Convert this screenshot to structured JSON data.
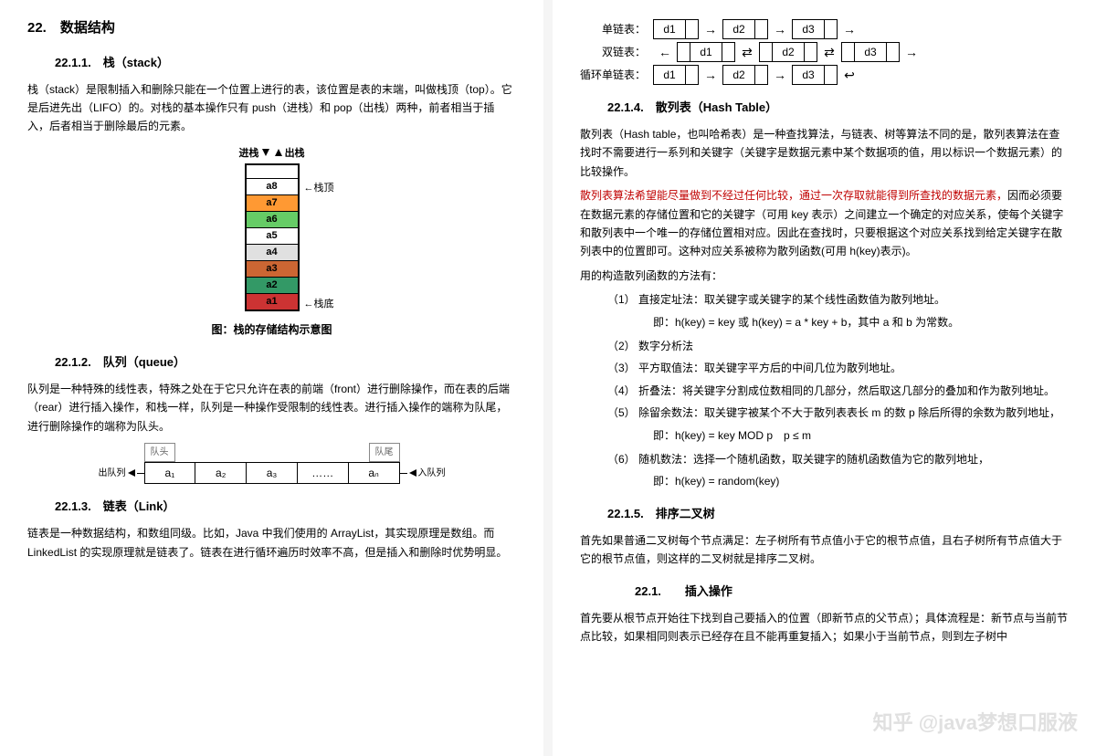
{
  "left": {
    "title": "22.　数据结构",
    "s1": {
      "heading": "22.1.1.　栈（stack）",
      "para": "栈（stack）是限制插入和删除只能在一个位置上进行的表，该位置是表的末端，叫做栈顶（top）。它是后进先出（LIFO）的。对栈的基本操作只有 push（进栈）和 pop（出栈）两种，前者相当于插入，后者相当于删除最后的元素。",
      "diagram": {
        "label_in": "进栈",
        "label_out": "出栈",
        "label_top": "←栈顶",
        "label_bottom": "←栈底",
        "cells": [
          {
            "v": "a8",
            "bg": "#ffffff"
          },
          {
            "v": "a7",
            "bg": "#ff9933"
          },
          {
            "v": "a6",
            "bg": "#66cc66"
          },
          {
            "v": "a5",
            "bg": "#ffffff"
          },
          {
            "v": "a4",
            "bg": "#e0e0e0"
          },
          {
            "v": "a3",
            "bg": "#cc6633"
          },
          {
            "v": "a2",
            "bg": "#339966"
          },
          {
            "v": "a1",
            "bg": "#cc3333"
          }
        ],
        "caption": "图：栈的存储结构示意图"
      }
    },
    "s2": {
      "heading": "22.1.2.　队列（queue）",
      "para": "队列是一种特殊的线性表，特殊之处在于它只允许在表的前端（front）进行删除操作，而在表的后端（rear）进行插入操作，和栈一样，队列是一种操作受限制的线性表。进行插入操作的端称为队尾，进行删除操作的端称为队头。",
      "diagram": {
        "head_label": "队头",
        "tail_label": "队尾",
        "out_label": "出队列",
        "in_label": "入队列",
        "cells": [
          "a₁",
          "a₂",
          "a₃",
          "……",
          "aₙ"
        ]
      }
    },
    "s3": {
      "heading": "22.1.3.　链表（Link）",
      "para": "链表是一种数据结构，和数组同级。比如，Java 中我们使用的 ArrayList，其实现原理是数组。而 LinkedList 的实现原理就是链表了。链表在进行循环遍历时效率不高，但是插入和删除时优势明显。"
    }
  },
  "right": {
    "ll_diagram": {
      "rows": [
        {
          "label": "单链表：",
          "type": "single",
          "vals": [
            "d1",
            "d2",
            "d3"
          ]
        },
        {
          "label": "双链表：",
          "type": "double",
          "vals": [
            "d1",
            "d2",
            "d3"
          ]
        },
        {
          "label": "循环单链表：",
          "type": "circ",
          "vals": [
            "d1",
            "d2",
            "d3"
          ]
        }
      ]
    },
    "s4": {
      "heading": "22.1.4.　散列表（Hash Table）",
      "p1": "散列表（Hash table，也叫哈希表）是一种查找算法，与链表、树等算法不同的是，散列表算法在查找时不需要进行一系列和关键字（关键字是数据元素中某个数据项的值，用以标识一个数据元素）的比较操作。",
      "p2_red": "散列表算法希望能尽量做到不经过任何比较，通过一次存取就能得到所查找的数据元素，",
      "p2_rest": "因而必须要在数据元素的存储位置和它的关键字（可用 key 表示）之间建立一个确定的对应关系，使每个关键字和散列表中一个唯一的存储位置相对应。因此在查找时，只要根据这个对应关系找到给定关键字在散列表中的位置即可。这种对应关系被称为散列函数(可用 h(key)表示)。",
      "p3": "用的构造散列函数的方法有：",
      "methods": [
        {
          "n": "（1）",
          "t": "直接定址法：取关键字或关键字的某个线性函数值为散列地址。",
          "sub": "即：h(key) = key  或  h(key) = a * key + b，其中 a 和 b 为常数。"
        },
        {
          "n": "（2）",
          "t": "数字分析法"
        },
        {
          "n": "（3）",
          "t": "平方取值法：取关键字平方后的中间几位为散列地址。"
        },
        {
          "n": "（4）",
          "t": "折叠法：将关键字分割成位数相同的几部分，然后取这几部分的叠加和作为散列地址。"
        },
        {
          "n": "（5）",
          "t": "除留余数法：取关键字被某个不大于散列表表长 m 的数 p 除后所得的余数为散列地址，",
          "sub": "即：h(key) = key MOD p　p ≤ m"
        },
        {
          "n": "（6）",
          "t": "随机数法：选择一个随机函数，取关键字的随机函数值为它的散列地址，",
          "sub": "即：h(key) = random(key)"
        }
      ]
    },
    "s5": {
      "heading": "22.1.5.　排序二叉树",
      "p1": "首先如果普通二叉树每个节点满足：左子树所有节点值小于它的根节点值，且右子树所有节点值大于它的根节点值，则这样的二叉树就是排序二叉树。",
      "h_insert": "22.1.　　插入操作",
      "p2": "首先要从根节点开始往下找到自己要插入的位置（即新节点的父节点）；具体流程是：新节点与当前节点比较，如果相同则表示已经存在且不能再重复插入；如果小于当前节点，则到左子树中"
    },
    "watermark": "知乎 @java梦想口服液"
  },
  "colors": {
    "bg": "#ffffff",
    "text": "#000000",
    "red": "#c00000",
    "watermark": "#cccccc"
  }
}
